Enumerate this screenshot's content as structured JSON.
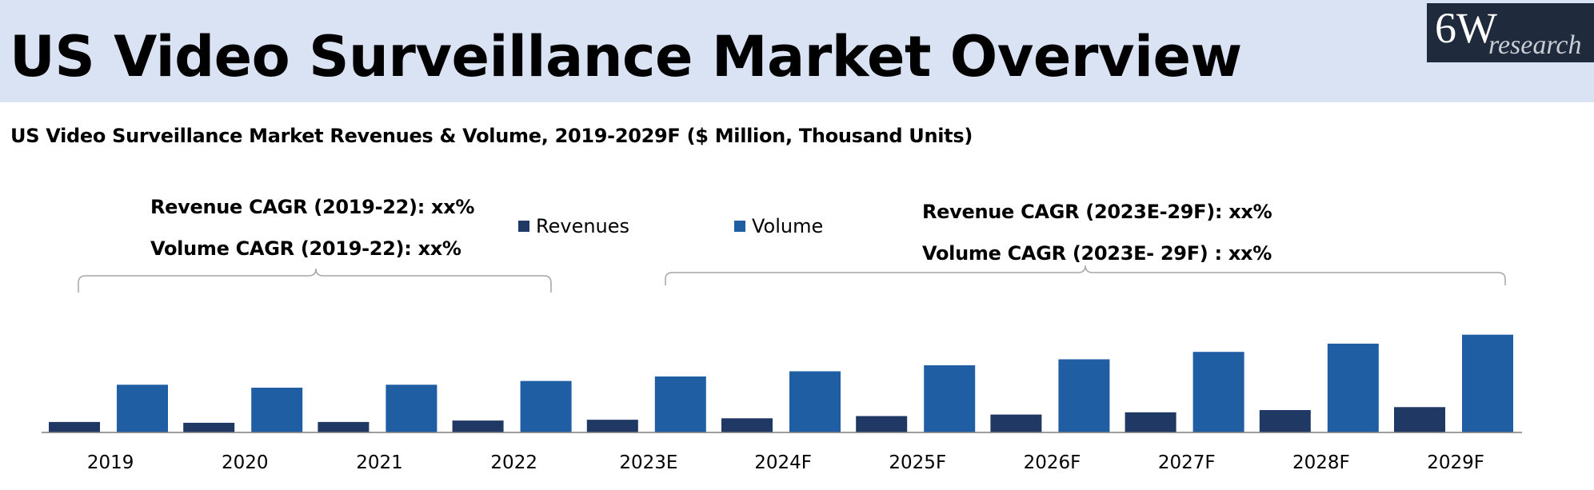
{
  "header": {
    "title": "US Video Surveillance Market Overview",
    "logo_main": "6W",
    "logo_sub": "research"
  },
  "colors": {
    "header_bg": "#dae3f3",
    "revenues": "#203864",
    "volume": "#1f5ea3",
    "axis": "#7f7f7f",
    "bracket": "#a6a6a6"
  },
  "annotations": {
    "left_revenue_cagr": "Revenue CAGR (2019-22): xx%",
    "left_volume_cagr": "Volume CAGR (2019-22): xx%",
    "right_revenue_cagr": "Revenue CAGR (2023E-29F): xx%",
    "right_volume_cagr": "Volume CAGR (2023E- 29F) : xx%"
  },
  "chart_data": {
    "type": "bar",
    "title": "US Video Surveillance Market Revenues & Volume, 2019-2029F ($ Million, Thousand Units)",
    "categories": [
      "2019",
      "2020",
      "2021",
      "2022",
      "2023E",
      "2024F",
      "2025F",
      "2026F",
      "2027F",
      "2028F",
      "2029F"
    ],
    "series": [
      {
        "name": "Revenues",
        "values": [
          14,
          13,
          14,
          16,
          17,
          19,
          22,
          24,
          27,
          30,
          34
        ]
      },
      {
        "name": "Volume",
        "values": [
          64,
          60,
          64,
          69,
          75,
          82,
          90,
          98,
          108,
          119,
          131
        ]
      }
    ],
    "ylim": [
      0,
      150
    ],
    "legend": "top-center",
    "grid": false
  }
}
